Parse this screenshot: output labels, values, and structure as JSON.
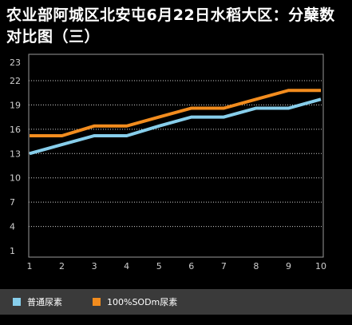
{
  "chart_data": {
    "type": "line",
    "title": "农业部阿城区北安屯6月22日水稻大区：分蘖数对比图（三）",
    "xlabel": "",
    "ylabel": "",
    "x": [
      1,
      2,
      3,
      4,
      5,
      6,
      7,
      8,
      9,
      10
    ],
    "x_tick_labels": [
      "1",
      "2",
      "3",
      "4",
      "5",
      "6",
      "7",
      "8",
      "9",
      "10"
    ],
    "y_tick_labels": [
      "1",
      "4",
      "7",
      "10",
      "13",
      "16",
      "19",
      "22",
      "23"
    ],
    "ylim": [
      1,
      23
    ],
    "grid": "horizontal dotted",
    "legend": "bottom",
    "series": [
      {
        "name": "普通尿素",
        "color": "#87CEEB",
        "values": [
          13.0,
          14.1,
          15.2,
          15.2,
          16.4,
          17.5,
          17.5,
          18.6,
          18.6,
          19.7
        ]
      },
      {
        "name": "100%SODm尿素",
        "color": "#F28C1E",
        "values": [
          15.2,
          15.2,
          16.4,
          16.4,
          17.5,
          18.6,
          18.6,
          19.7,
          20.8,
          20.8
        ]
      }
    ]
  }
}
